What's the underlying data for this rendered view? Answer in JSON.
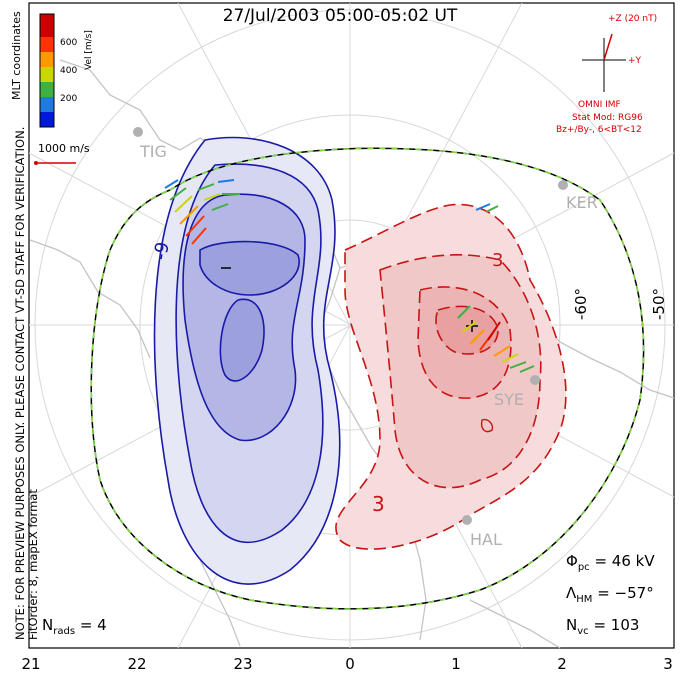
{
  "title": "27/Jul/2003 05:00-05:02 UT",
  "side_note_line1": "NOTE: FOR PREVIEW PURPOSES ONLY. PLEASE CONTACT VT-SD STAFF FOR VERIFICATION.",
  "side_note_line2": "FitOrder: 8, mapEX format",
  "coord_label": "MLT coordinates",
  "velocity_scale": {
    "label": "Vel [m/s]",
    "ticks": [
      "600",
      "400",
      "200"
    ],
    "colors": [
      "#0018d8",
      "#1f7be0",
      "#40b040",
      "#c8d800",
      "#ff9900",
      "#ff3300",
      "#cc0000"
    ]
  },
  "reference_vector": "1000 m/s",
  "omni": {
    "bz_label": "+Z (20 nT)",
    "by_label": "+Y",
    "source": "OMNI IMF",
    "model": "Stat Mod: RG96",
    "condition": "Bz+/By-, 6<BT<12"
  },
  "stations": [
    "TIG",
    "KER",
    "SYE",
    "HAL"
  ],
  "lat_labels": [
    "-60°",
    "-50°"
  ],
  "contour_labels": {
    "neg": "-9",
    "pos": "3",
    "pos2": "3"
  },
  "stats": {
    "phi_label": "Φ",
    "phi_sub": "pc",
    "phi_value": "= 46 kV",
    "lambda_label": "Λ",
    "lambda_sub": "HM",
    "lambda_value": "= −57°",
    "nvc_label": "N",
    "nvc_sub": "vc",
    "nvc_value": "= 103",
    "nrads_label": "N",
    "nrads_sub": "rads",
    "nrads_value": "= 4"
  },
  "mlt_ticks": [
    "21",
    "22",
    "23",
    "0",
    "1",
    "2",
    "3"
  ],
  "colors": {
    "negative_cell": "#1a1aa8",
    "positive_cell": "#c81414",
    "hmb": "#7ddc3c",
    "land": "#c8c8c8"
  }
}
